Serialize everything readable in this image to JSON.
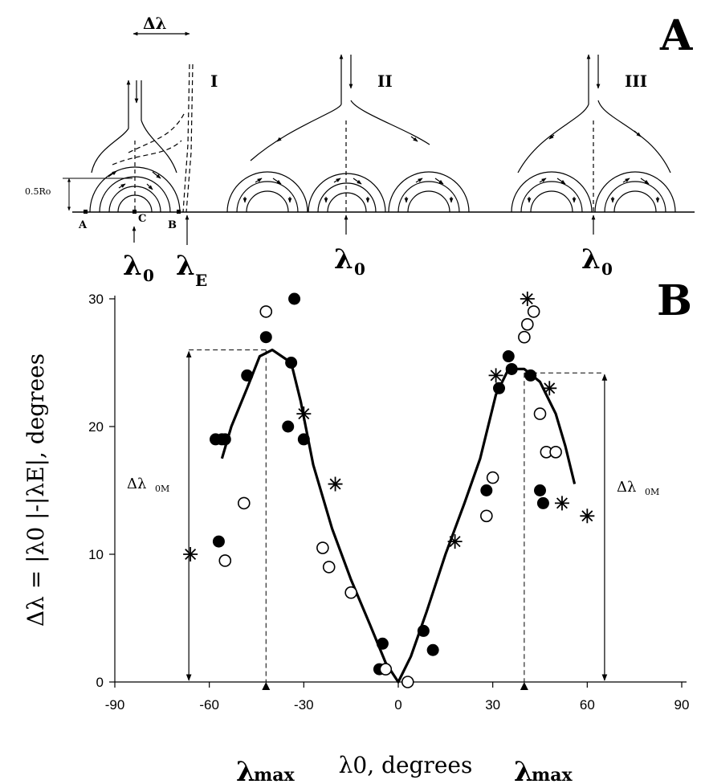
{
  "panel_a": {
    "letter": "A",
    "cells": [
      {
        "numeral": "I",
        "lambda_label": "λ",
        "lambda_sub": "0"
      },
      {
        "numeral": "II",
        "lambda_label": "λ",
        "lambda_sub": "0"
      },
      {
        "numeral": "III",
        "lambda_label": "λ",
        "lambda_sub": "0"
      }
    ],
    "delta_lambda_label": "Δλ",
    "height_label": "0.5Ro",
    "point_a": "A",
    "point_b": "B",
    "point_c": "C",
    "lambda_e_label": "λ",
    "lambda_e_sub": "E"
  },
  "chart_data": {
    "type": "scatter",
    "panel_letter": "B",
    "title": "",
    "xlabel": "λ0, degrees",
    "ylabel": "Δλ = |λ0 |-|λE|, degrees",
    "xlim": [
      -90,
      90
    ],
    "ylim": [
      0,
      30
    ],
    "x_ticks": [
      -90,
      -60,
      -30,
      0,
      30,
      60,
      90
    ],
    "x_tick_labels": [
      "-90",
      "-60",
      "-30",
      "0",
      "30",
      "60",
      "90"
    ],
    "y_ticks": [
      0,
      10,
      20,
      30
    ],
    "y_tick_labels": [
      "0",
      "10",
      "20",
      "30"
    ],
    "grid": false,
    "series": [
      {
        "marker": "filled-circle",
        "points": [
          [
            -58,
            19
          ],
          [
            -56,
            19
          ],
          [
            -55,
            19
          ],
          [
            -57,
            11
          ],
          [
            -48,
            24
          ],
          [
            -42,
            27
          ],
          [
            -34,
            25
          ],
          [
            -33,
            30
          ],
          [
            -35,
            20
          ],
          [
            -30,
            19
          ],
          [
            -5,
            3
          ],
          [
            -6,
            1
          ],
          [
            8,
            4
          ],
          [
            11,
            2.5
          ],
          [
            28,
            15
          ],
          [
            32,
            23
          ],
          [
            35,
            25.5
          ],
          [
            36,
            24.5
          ],
          [
            42,
            24
          ],
          [
            45,
            15
          ],
          [
            46,
            14
          ]
        ]
      },
      {
        "marker": "open-circle",
        "points": [
          [
            -55,
            9.5
          ],
          [
            -49,
            14
          ],
          [
            -42,
            29
          ],
          [
            -24,
            10.5
          ],
          [
            -22,
            9
          ],
          [
            -15,
            7
          ],
          [
            -4,
            1
          ],
          [
            3,
            0
          ],
          [
            28,
            13
          ],
          [
            30,
            16
          ],
          [
            40,
            27
          ],
          [
            41,
            28
          ],
          [
            43,
            29
          ],
          [
            45,
            21
          ],
          [
            47,
            18
          ],
          [
            50,
            18
          ]
        ]
      },
      {
        "marker": "star",
        "points": [
          [
            -66,
            10
          ],
          [
            -30,
            21
          ],
          [
            -20,
            15.5
          ],
          [
            18,
            11
          ],
          [
            31,
            24
          ],
          [
            41,
            30
          ],
          [
            48,
            23
          ],
          [
            52,
            14
          ],
          [
            60,
            13
          ]
        ]
      },
      {
        "marker": "line",
        "points": [
          [
            -56,
            17.5
          ],
          [
            -53,
            20
          ],
          [
            -48,
            23
          ],
          [
            -44,
            25.5
          ],
          [
            -40,
            26
          ],
          [
            -34,
            25
          ],
          [
            -31,
            22
          ],
          [
            -27,
            17
          ],
          [
            -21,
            12
          ],
          [
            -15,
            8
          ],
          [
            -9,
            4.5
          ],
          [
            -4,
            1.5
          ],
          [
            0,
            0
          ],
          [
            4,
            2
          ],
          [
            9,
            5.5
          ],
          [
            15,
            10
          ],
          [
            21,
            14
          ],
          [
            26,
            17.5
          ],
          [
            31,
            22.5
          ],
          [
            35,
            24.5
          ],
          [
            40,
            24.5
          ],
          [
            45,
            23.5
          ],
          [
            50,
            21
          ],
          [
            53,
            18.5
          ],
          [
            56,
            15.5
          ]
        ]
      }
    ],
    "annotations": {
      "lambda_max_label": "λ",
      "lambda_max_sub": "max",
      "delta_label": "Δλ",
      "delta_sub": "0M",
      "left_max": {
        "x": -42,
        "y": 26
      },
      "right_max": {
        "x": 40,
        "y": 24.2
      }
    }
  }
}
